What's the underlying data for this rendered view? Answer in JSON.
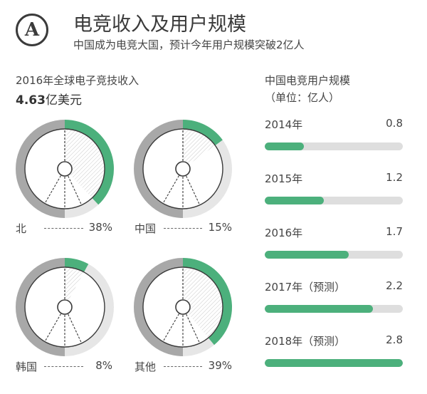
{
  "header": {
    "badge_letter": "A",
    "title": "电竞收入及用户规模",
    "subtitle": "中国成为电竞大国，预计今年用户规模突破2亿人"
  },
  "colors": {
    "accent": "#4cb07c",
    "ring_other": "#a8a8a8",
    "ring_light": "#e6e6e6",
    "track": "#dedede",
    "text": "#3a3a3a"
  },
  "chart_data": [
    {
      "type": "pie",
      "title": "2016年全球电子竞技收入",
      "total_value": "4.63",
      "total_unit": "亿美元",
      "categories": [
        "北",
        "中国",
        "韩国",
        "其他"
      ],
      "values": [
        38,
        15,
        8,
        39
      ],
      "labels": [
        "38%",
        "15%",
        "8%",
        "39%"
      ]
    },
    {
      "type": "bar",
      "title": "中国电竞用户规模",
      "unit_label": "（单位：亿人）",
      "categories": [
        "2014年",
        "2015年",
        "2016年",
        "2017年（预测）",
        "2018年（预测）"
      ],
      "values": [
        0.8,
        1.2,
        1.7,
        2.2,
        2.8
      ],
      "labels": [
        "0.8",
        "1.2",
        "1.7",
        "2.2",
        "2.8"
      ],
      "xlim": [
        0,
        2.8
      ]
    }
  ]
}
